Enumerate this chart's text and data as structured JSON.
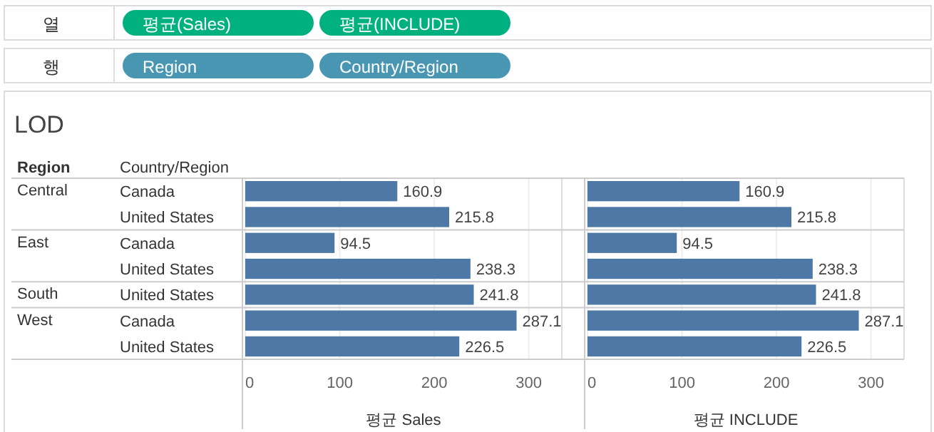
{
  "chart_data": [
    {
      "type": "bar",
      "orientation": "horizontal",
      "title": "LOD",
      "xlabel": "평균 Sales",
      "categories": [
        "Canada",
        "United States",
        "Canada",
        "United States",
        "United States",
        "Canada",
        "United States"
      ],
      "values": [
        160.9,
        215.8,
        94.5,
        238.3,
        241.8,
        287.1,
        226.5
      ],
      "color": "#4e79a7",
      "data_labels": true,
      "xlim": [
        0,
        335
      ],
      "xticks": [
        0,
        100,
        200,
        300
      ],
      "grid": "x",
      "annotations": [
        "열",
        "평균(Sales)",
        "평균(INCLUDE)",
        "행",
        "Region",
        "Country/Region",
        "Region",
        "Country/Region",
        "Central",
        "East",
        "South",
        "West"
      ]
    },
    {
      "type": "bar",
      "orientation": "horizontal",
      "xlabel": "평균 INCLUDE",
      "values": [
        160.9,
        215.8,
        94.5,
        238.3,
        241.8,
        287.1,
        226.5
      ],
      "color": "#4e79a7",
      "data_labels": true,
      "xlim": [
        0,
        335
      ],
      "xticks": [
        0,
        100,
        200,
        300
      ],
      "grid": "x",
      "tick_labels": "x"
    }
  ]
}
